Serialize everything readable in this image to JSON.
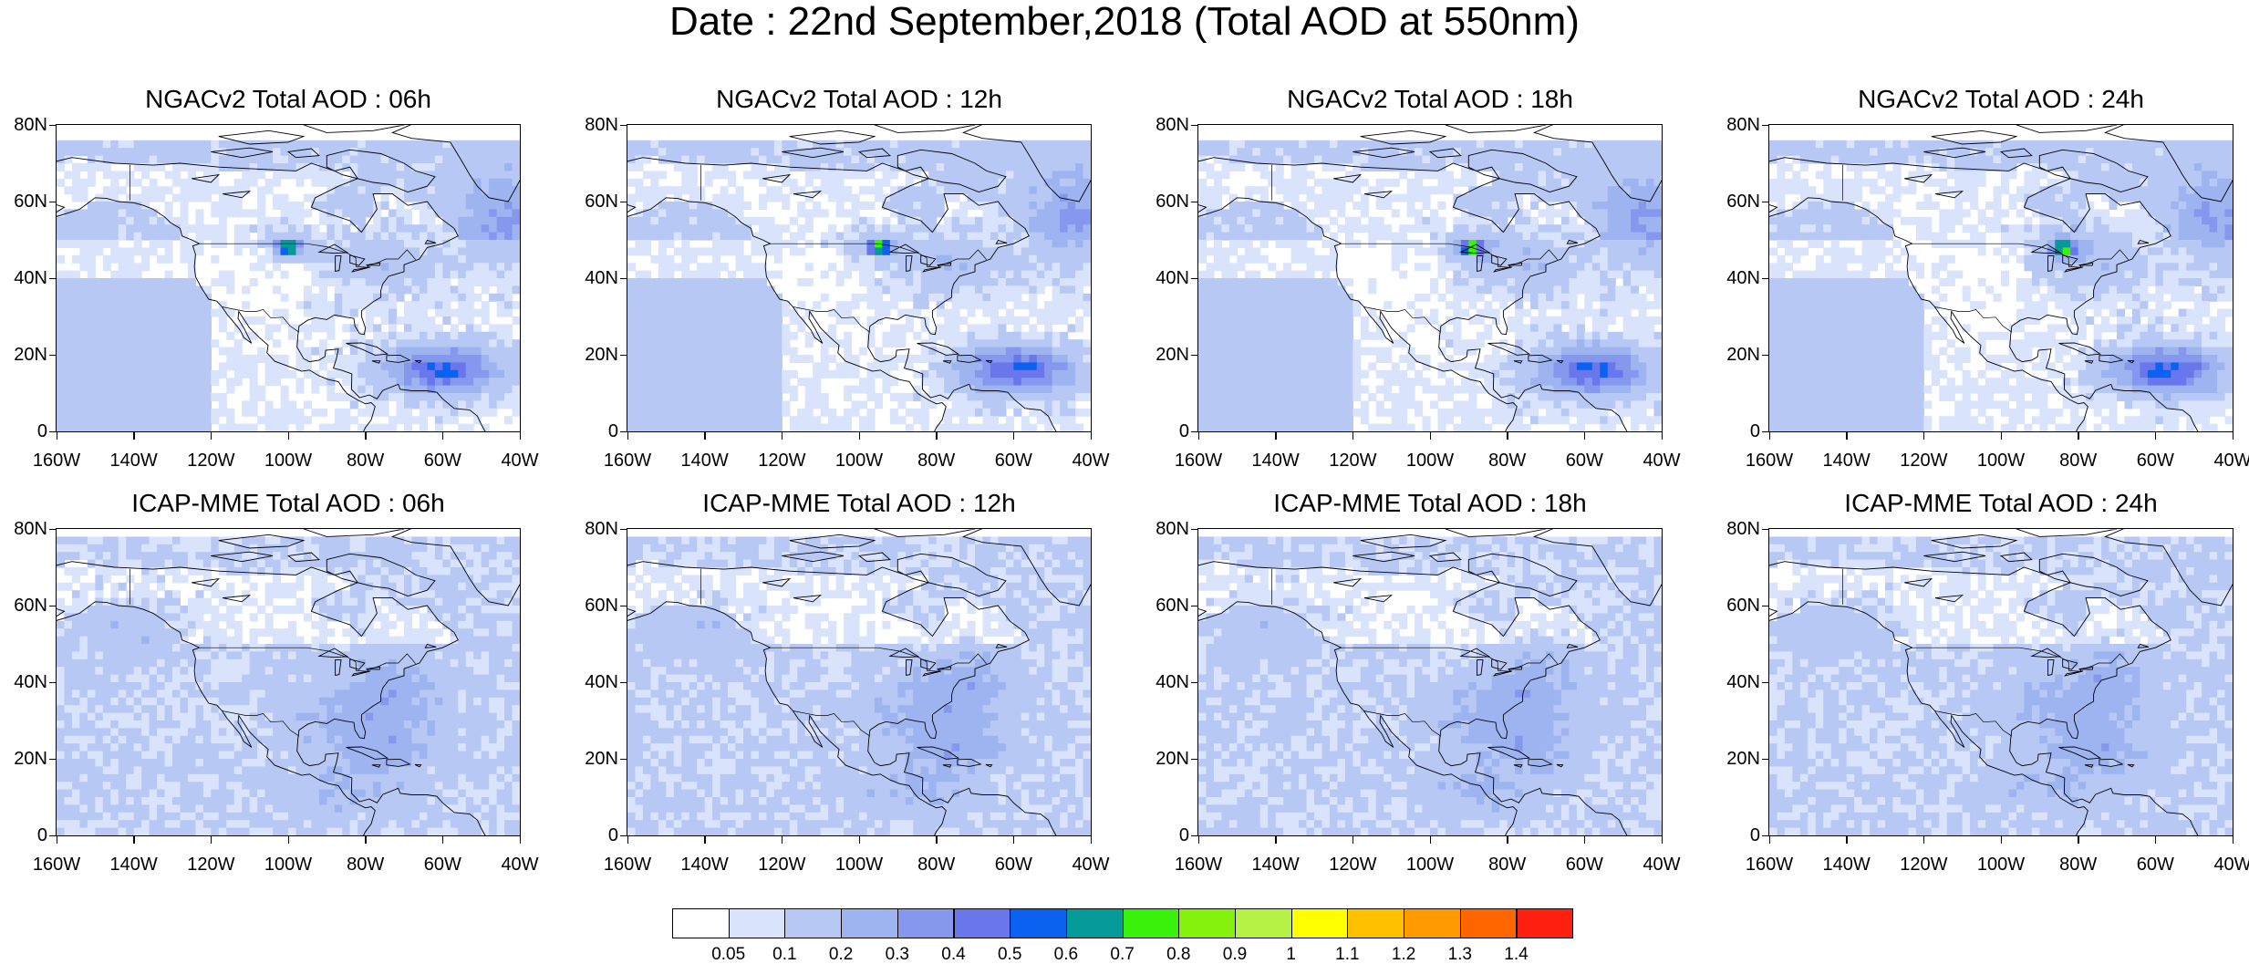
{
  "title": "Date : 22nd September,2018 (Total AOD at 550nm)",
  "panels": [
    {
      "title": "NGACv2 Total AOD : 06h",
      "model": "ngac",
      "hour": 6
    },
    {
      "title": "NGACv2 Total AOD : 12h",
      "model": "ngac",
      "hour": 12
    },
    {
      "title": "NGACv2 Total AOD : 18h",
      "model": "ngac",
      "hour": 18
    },
    {
      "title": "NGACv2 Total AOD : 24h",
      "model": "ngac",
      "hour": 24
    },
    {
      "title": "ICAP-MME Total AOD : 06h",
      "model": "icap",
      "hour": 6
    },
    {
      "title": "ICAP-MME Total AOD : 12h",
      "model": "icap",
      "hour": 12
    },
    {
      "title": "ICAP-MME Total AOD : 18h",
      "model": "icap",
      "hour": 18
    },
    {
      "title": "ICAP-MME Total AOD : 24h",
      "model": "icap",
      "hour": 24
    }
  ],
  "lat_ticks": [
    "80N",
    "60N",
    "40N",
    "20N",
    "0"
  ],
  "lon_ticks": [
    "160W",
    "140W",
    "120W",
    "100W",
    "80W",
    "60W",
    "40W"
  ],
  "map_extent": {
    "lon": [
      -160,
      -40
    ],
    "lat": [
      0,
      80
    ]
  },
  "colorbar": {
    "labels": [
      "0.05",
      "0.1",
      "0.2",
      "0.3",
      "0.4",
      "0.5",
      "0.6",
      "0.7",
      "0.8",
      "0.9",
      "1",
      "1.1",
      "1.2",
      "1.3",
      "1.4"
    ],
    "colors": [
      "#ffffff",
      "#d9e3fb",
      "#b8c8f5",
      "#9db4f0",
      "#8598ee",
      "#6a77ec",
      "#0b62f1",
      "#069a98",
      "#3af10c",
      "#85f20d",
      "#b6f245",
      "#ffff00",
      "#ffc000",
      "#ff9a00",
      "#ff6600",
      "#ff2010"
    ]
  }
}
